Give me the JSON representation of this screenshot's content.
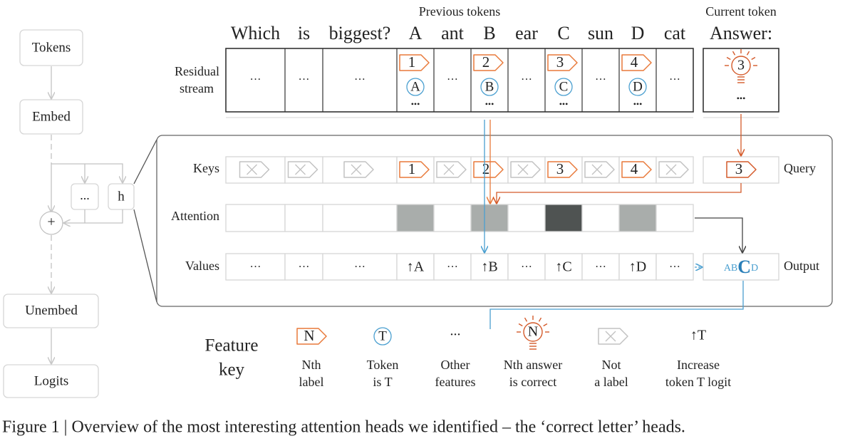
{
  "pipeline": {
    "tokens": "Tokens",
    "embed": "Embed",
    "ellipsis": "...",
    "head": "h",
    "plus": "+",
    "unembed": "Unembed",
    "logits": "Logits"
  },
  "headers": {
    "previous": "Previous tokens",
    "current": "Current token"
  },
  "tokens": [
    "Which",
    "is",
    "biggest?",
    "A",
    "ant",
    "B",
    "ear",
    "C",
    "sun",
    "D",
    "cat"
  ],
  "current_token": "Answer:",
  "rows": {
    "residual": [
      "Residual",
      "stream"
    ],
    "keys": "Keys",
    "attention": "Attention",
    "values": "Values",
    "query": "Query",
    "output": "Output"
  },
  "residual_cells": [
    "···",
    "···",
    "···",
    {
      "label": "1",
      "token": "A",
      "more": "•••"
    },
    "···",
    {
      "label": "2",
      "token": "B",
      "more": "•••"
    },
    "···",
    {
      "label": "3",
      "token": "C",
      "more": "•••"
    },
    "···",
    {
      "label": "4",
      "token": "D",
      "more": "•••"
    },
    "···"
  ],
  "current_cell": {
    "label": "3",
    "more": "•••"
  },
  "keys": [
    null,
    null,
    null,
    "1",
    null,
    "2",
    null,
    "3",
    null,
    "4",
    null
  ],
  "query": "3",
  "attention_colors": [
    "#ffffff",
    "#ffffff",
    "#ffffff",
    "#a9adab",
    "#ffffff",
    "#a9adab",
    "#ffffff",
    "#4f5352",
    "#ffffff",
    "#a9adab",
    "#ffffff"
  ],
  "values": [
    "···",
    "···",
    "···",
    "↑A",
    "···",
    "↑B",
    "···",
    "↑C",
    "···",
    "↑D",
    "···"
  ],
  "output": {
    "before": "AB",
    "main": "C",
    "after": "D"
  },
  "feature_key": {
    "title": [
      "Feature",
      "key"
    ],
    "items": [
      {
        "icon": "N",
        "lines": [
          "Nth",
          "label"
        ]
      },
      {
        "icon": "T",
        "lines": [
          "Token",
          "is T"
        ]
      },
      {
        "icon": "...",
        "lines": [
          "Other",
          "features"
        ]
      },
      {
        "icon": "N",
        "lines": [
          "Nth answer",
          "is correct"
        ]
      },
      {
        "lines": [
          "Not",
          "a label"
        ]
      },
      {
        "icon": "↑T",
        "lines": [
          "Increase",
          "token T logit"
        ]
      }
    ]
  },
  "caption": "Figure 1 | Overview of the most interesting attention heads we identified – the ‘correct letter’ heads."
}
